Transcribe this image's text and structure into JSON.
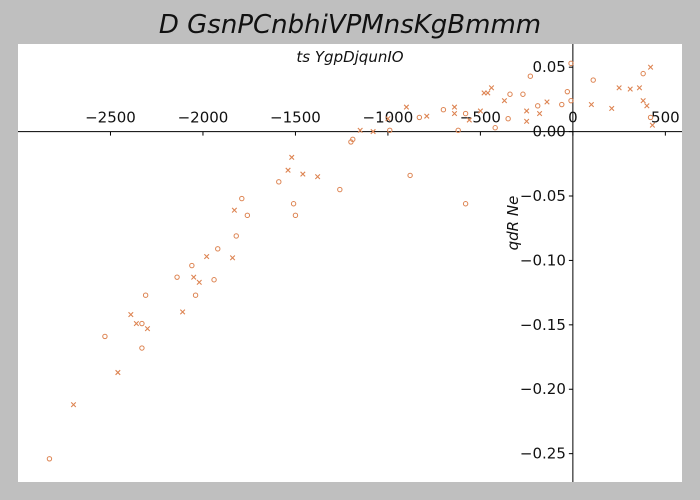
{
  "chart_data": {
    "type": "scatter",
    "title": "D GsnPCnbhiVPMnsKgBmmm",
    "xlabel": "ts  YgpDjqunIO",
    "ylabel": "qdR Ne",
    "xlim": [
      -3000,
      590
    ],
    "ylim": [
      -0.272,
      0.068
    ],
    "xticks": [
      -2500,
      -2000,
      -1500,
      -1000,
      -500,
      0,
      500
    ],
    "xtick_labels": [
      "−2500",
      "−2000",
      "−1500",
      "−1000",
      "−500",
      "0",
      "500"
    ],
    "yticks": [
      0.05,
      0.0,
      -0.05,
      -0.1,
      -0.15,
      -0.2,
      -0.25
    ],
    "ytick_labels": [
      "0.05",
      "0.00",
      "−0.05",
      "−0.10",
      "−0.15",
      "−0.20",
      "−0.25"
    ],
    "grid": false,
    "spines": "centered",
    "marker_color": "#dd8452",
    "series": [
      {
        "marker": "circle",
        "points": [
          [
            -2830,
            -0.254
          ],
          [
            -2530,
            -0.159
          ],
          [
            -2330,
            -0.168
          ],
          [
            -2330,
            -0.149
          ],
          [
            -2310,
            -0.127
          ],
          [
            -2140,
            -0.113
          ],
          [
            -2060,
            -0.104
          ],
          [
            -2040,
            -0.127
          ],
          [
            -1940,
            -0.115
          ],
          [
            -1920,
            -0.091
          ],
          [
            -1820,
            -0.081
          ],
          [
            -1790,
            -0.052
          ],
          [
            -1760,
            -0.065
          ],
          [
            -1590,
            -0.039
          ],
          [
            -1500,
            -0.065
          ],
          [
            -1510,
            -0.056
          ],
          [
            -1260,
            -0.045
          ],
          [
            -1200,
            -0.008
          ],
          [
            -1190,
            -0.006
          ],
          [
            -990,
            0.001
          ],
          [
            -880,
            -0.034
          ],
          [
            -580,
            -0.056
          ],
          [
            -830,
            0.011
          ],
          [
            -700,
            0.017
          ],
          [
            -620,
            0.001
          ],
          [
            -580,
            0.014
          ],
          [
            -270,
            0.029
          ],
          [
            -340,
            0.029
          ],
          [
            -230,
            0.043
          ],
          [
            -420,
            0.003
          ],
          [
            -350,
            0.01
          ],
          [
            -190,
            0.02
          ],
          [
            -60,
            0.021
          ],
          [
            -30,
            0.031
          ],
          [
            -10,
            0.053
          ],
          [
            -10,
            0.024
          ],
          [
            110,
            0.04
          ],
          [
            380,
            0.045
          ],
          [
            420,
            0.011
          ]
        ]
      },
      {
        "marker": "x",
        "points": [
          [
            -2700,
            -0.212
          ],
          [
            -2460,
            -0.187
          ],
          [
            -2390,
            -0.142
          ],
          [
            -2360,
            -0.149
          ],
          [
            -2300,
            -0.153
          ],
          [
            -2110,
            -0.14
          ],
          [
            -2050,
            -0.113
          ],
          [
            -2020,
            -0.117
          ],
          [
            -1980,
            -0.097
          ],
          [
            -1840,
            -0.098
          ],
          [
            -1830,
            -0.061
          ],
          [
            -1540,
            -0.03
          ],
          [
            -1520,
            -0.02
          ],
          [
            -1460,
            -0.033
          ],
          [
            -1380,
            -0.035
          ],
          [
            -1150,
            0.001
          ],
          [
            -1080,
            0.0
          ],
          [
            -1000,
            0.01
          ],
          [
            -900,
            0.019
          ],
          [
            -790,
            0.012
          ],
          [
            -640,
            0.019
          ],
          [
            -640,
            0.014
          ],
          [
            -560,
            0.009
          ],
          [
            -500,
            0.016
          ],
          [
            -480,
            0.03
          ],
          [
            -460,
            0.03
          ],
          [
            -440,
            0.034
          ],
          [
            -370,
            0.024
          ],
          [
            -250,
            0.008
          ],
          [
            -250,
            0.016
          ],
          [
            -180,
            0.014
          ],
          [
            -140,
            0.023
          ],
          [
            100,
            0.021
          ],
          [
            210,
            0.018
          ],
          [
            250,
            0.034
          ],
          [
            310,
            0.033
          ],
          [
            360,
            0.034
          ],
          [
            380,
            0.024
          ],
          [
            400,
            0.02
          ],
          [
            420,
            0.05
          ],
          [
            430,
            0.005
          ]
        ]
      }
    ]
  }
}
